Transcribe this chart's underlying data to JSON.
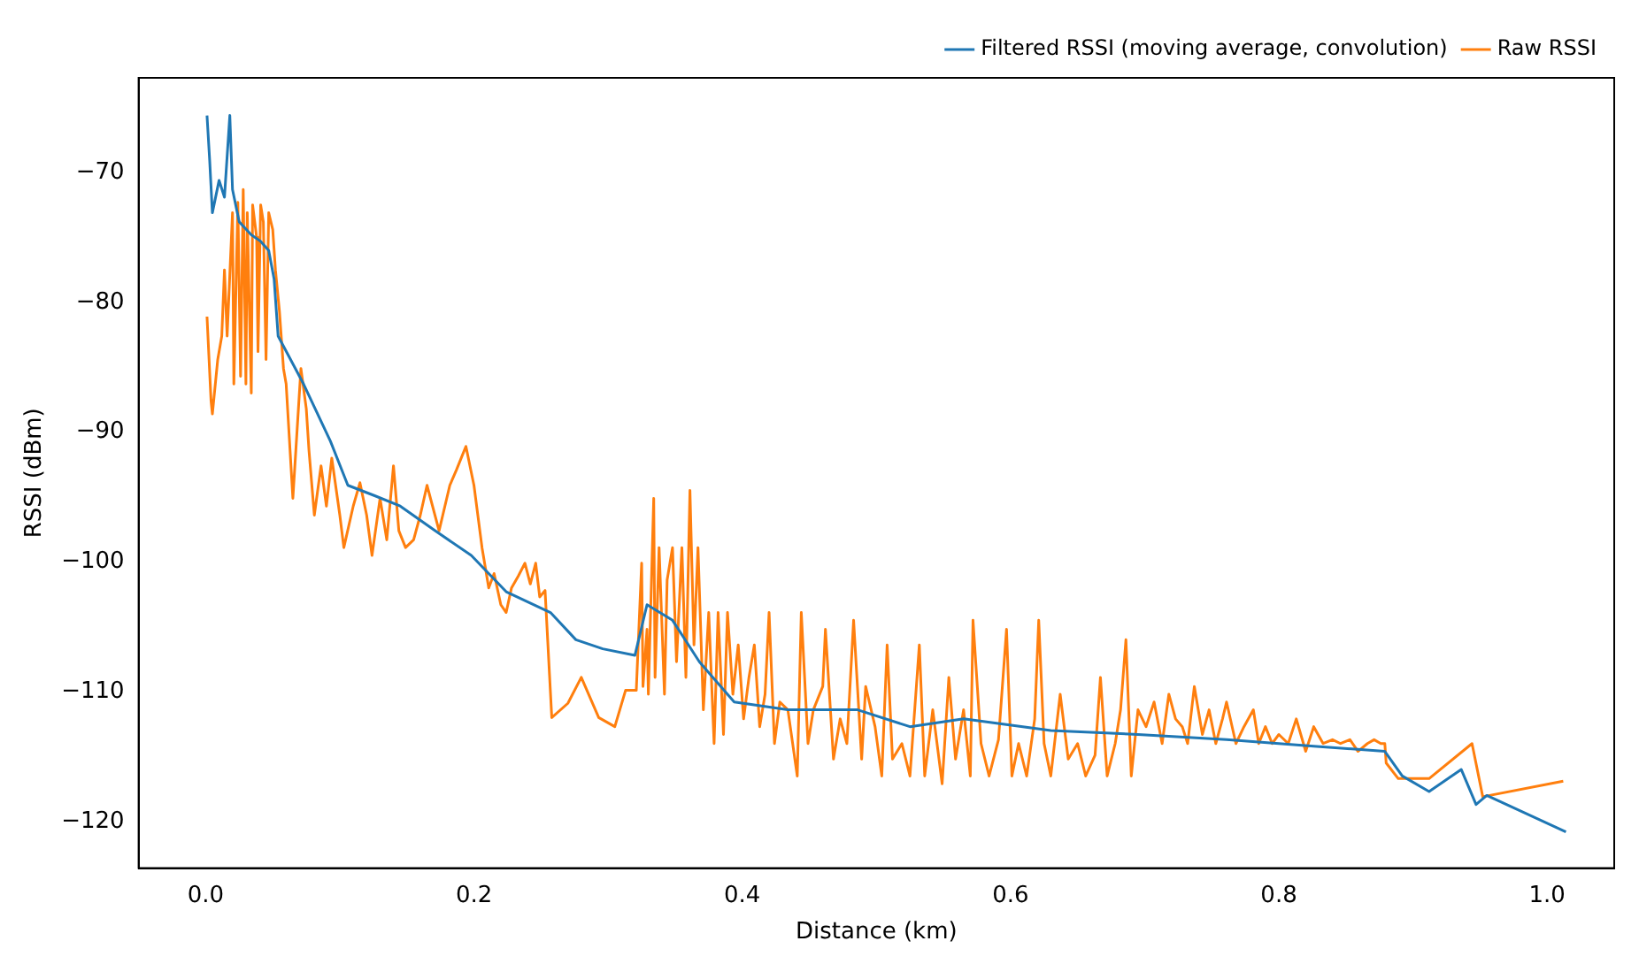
{
  "chart_data": {
    "type": "line",
    "xlabel": "Distance (km)",
    "ylabel": "RSSI (dBm)",
    "xlim": [
      -0.05,
      1.05
    ],
    "ylim": [
      -123.6,
      -62.7
    ],
    "xticks": [
      {
        "value": 0,
        "label": "0.0"
      },
      0.2,
      0.4,
      0.6,
      0.8,
      {
        "value": 1,
        "label": "1.0"
      }
    ],
    "yticks": [
      -70,
      -80,
      -90,
      -100,
      -110,
      -120
    ],
    "grid": false,
    "legend": "top right",
    "marker": "none",
    "line_style": "solid",
    "series": [
      {
        "name": "Filtered RSSI (moving average, convolution)",
        "color": "#1f77b4",
        "x": [
          0.001,
          0.003,
          0.005,
          0.01,
          0.014,
          0.018,
          0.02,
          0.025,
          0.034,
          0.041,
          0.047,
          0.051,
          0.054,
          0.073,
          0.093,
          0.106,
          0.126,
          0.145,
          0.171,
          0.198,
          0.224,
          0.257,
          0.276,
          0.296,
          0.32,
          0.329,
          0.348,
          0.368,
          0.394,
          0.434,
          0.486,
          0.525,
          0.565,
          0.63,
          0.695,
          0.761,
          0.826,
          0.879,
          0.892,
          0.912,
          0.936,
          0.947,
          0.955,
          1.014
        ],
        "values": [
          -65.6,
          -69.1,
          -73.1,
          -70.6,
          -71.9,
          -65.6,
          -71.3,
          -73.8,
          -74.8,
          -75.3,
          -76.0,
          -78.2,
          -82.6,
          -86.3,
          -90.7,
          -94.1,
          -94.9,
          -95.7,
          -97.6,
          -99.5,
          -102.3,
          -103.9,
          -106.0,
          -106.7,
          -107.2,
          -103.3,
          -104.5,
          -107.7,
          -110.8,
          -111.4,
          -111.4,
          -112.7,
          -112.1,
          -113.0,
          -113.3,
          -113.7,
          -114.2,
          -114.6,
          -116.5,
          -117.7,
          -116.0,
          -118.7,
          -118.0,
          -120.8
        ]
      },
      {
        "name": "Raw RSSI",
        "color": "#ff7f0e",
        "x": [
          0.001,
          0.004,
          0.005,
          0.009,
          0.012,
          0.014,
          0.016,
          0.02,
          0.021,
          0.024,
          0.026,
          0.028,
          0.03,
          0.031,
          0.034,
          0.035,
          0.038,
          0.039,
          0.041,
          0.043,
          0.045,
          0.047,
          0.05,
          0.052,
          0.055,
          0.058,
          0.06,
          0.065,
          0.071,
          0.075,
          0.077,
          0.081,
          0.086,
          0.09,
          0.094,
          0.1,
          0.103,
          0.11,
          0.115,
          0.12,
          0.124,
          0.13,
          0.135,
          0.14,
          0.144,
          0.149,
          0.155,
          0.16,
          0.165,
          0.174,
          0.182,
          0.187,
          0.194,
          0.2,
          0.206,
          0.211,
          0.215,
          0.22,
          0.224,
          0.228,
          0.233,
          0.238,
          0.242,
          0.246,
          0.249,
          0.253,
          0.258,
          0.27,
          0.28,
          0.293,
          0.305,
          0.313,
          0.321,
          0.325,
          0.326,
          0.329,
          0.33,
          0.334,
          0.335,
          0.338,
          0.342,
          0.344,
          0.348,
          0.351,
          0.355,
          0.358,
          0.361,
          0.364,
          0.367,
          0.371,
          0.375,
          0.379,
          0.382,
          0.386,
          0.389,
          0.393,
          0.397,
          0.401,
          0.405,
          0.409,
          0.413,
          0.417,
          0.42,
          0.424,
          0.428,
          0.434,
          0.441,
          0.444,
          0.449,
          0.453,
          0.46,
          0.462,
          0.468,
          0.473,
          0.478,
          0.483,
          0.489,
          0.492,
          0.499,
          0.504,
          0.508,
          0.512,
          0.519,
          0.525,
          0.532,
          0.536,
          0.542,
          0.549,
          0.554,
          0.559,
          0.565,
          0.57,
          0.572,
          0.578,
          0.584,
          0.591,
          0.597,
          0.601,
          0.606,
          0.612,
          0.618,
          0.621,
          0.625,
          0.63,
          0.637,
          0.643,
          0.65,
          0.656,
          0.663,
          0.667,
          0.672,
          0.678,
          0.682,
          0.686,
          0.69,
          0.695,
          0.701,
          0.707,
          0.713,
          0.718,
          0.723,
          0.728,
          0.732,
          0.737,
          0.743,
          0.748,
          0.753,
          0.758,
          0.761,
          0.768,
          0.774,
          0.781,
          0.785,
          0.79,
          0.795,
          0.8,
          0.807,
          0.813,
          0.82,
          0.826,
          0.833,
          0.84,
          0.846,
          0.853,
          0.859,
          0.866,
          0.871,
          0.876,
          0.879,
          0.88,
          0.889,
          0.912,
          0.944,
          0.952,
          1.012
        ],
        "values": [
          -81.1,
          -87.6,
          -88.6,
          -84.4,
          -82.6,
          -77.5,
          -82.6,
          -73.1,
          -86.3,
          -72.3,
          -85.7,
          -71.3,
          -86.3,
          -73.1,
          -87.0,
          -72.5,
          -75.0,
          -83.8,
          -72.5,
          -73.8,
          -84.4,
          -73.1,
          -74.4,
          -77.5,
          -80.7,
          -85.1,
          -86.3,
          -95.1,
          -85.1,
          -88.2,
          -91.4,
          -96.4,
          -92.6,
          -95.7,
          -92.0,
          -96.4,
          -98.9,
          -95.7,
          -93.9,
          -96.4,
          -99.5,
          -95.1,
          -98.3,
          -92.6,
          -97.6,
          -98.9,
          -98.3,
          -96.4,
          -94.1,
          -97.6,
          -94.1,
          -92.9,
          -91.1,
          -94.1,
          -98.9,
          -102.0,
          -100.9,
          -103.3,
          -103.9,
          -102.0,
          -101.1,
          -100.1,
          -101.7,
          -100.1,
          -102.7,
          -102.2,
          -112.0,
          -110.9,
          -108.9,
          -112.0,
          -112.7,
          -109.9,
          -109.9,
          -100.1,
          -109.6,
          -105.2,
          -110.2,
          -95.1,
          -108.9,
          -98.9,
          -110.2,
          -101.4,
          -98.9,
          -107.7,
          -98.9,
          -108.9,
          -94.5,
          -106.4,
          -98.9,
          -111.4,
          -103.9,
          -114.0,
          -103.9,
          -113.3,
          -103.9,
          -110.2,
          -106.4,
          -112.1,
          -108.9,
          -106.4,
          -112.7,
          -110.2,
          -103.9,
          -114.0,
          -110.8,
          -111.4,
          -116.5,
          -103.9,
          -114.0,
          -111.4,
          -109.6,
          -105.2,
          -115.2,
          -112.1,
          -114.0,
          -104.5,
          -115.2,
          -109.6,
          -112.7,
          -116.5,
          -106.4,
          -115.2,
          -114.0,
          -116.5,
          -106.4,
          -116.5,
          -111.4,
          -117.1,
          -108.9,
          -115.2,
          -111.4,
          -116.5,
          -104.5,
          -114.0,
          -116.5,
          -113.7,
          -105.2,
          -116.5,
          -114.0,
          -116.5,
          -112.1,
          -104.5,
          -114.0,
          -116.5,
          -110.2,
          -115.2,
          -114.0,
          -116.5,
          -114.9,
          -108.9,
          -116.5,
          -114.0,
          -111.4,
          -106.0,
          -116.5,
          -111.4,
          -112.7,
          -110.8,
          -114.0,
          -110.2,
          -112.1,
          -112.7,
          -114.0,
          -109.6,
          -113.3,
          -111.4,
          -114.0,
          -112.1,
          -110.8,
          -114.0,
          -112.7,
          -111.4,
          -114.0,
          -112.7,
          -114.0,
          -113.3,
          -114.0,
          -112.1,
          -114.6,
          -112.7,
          -114.0,
          -113.7,
          -114.0,
          -113.7,
          -114.6,
          -114.0,
          -113.7,
          -114.0,
          -114.0,
          -115.5,
          -116.7,
          -116.7,
          -114.0,
          -118.1,
          -116.9
        ]
      }
    ]
  }
}
